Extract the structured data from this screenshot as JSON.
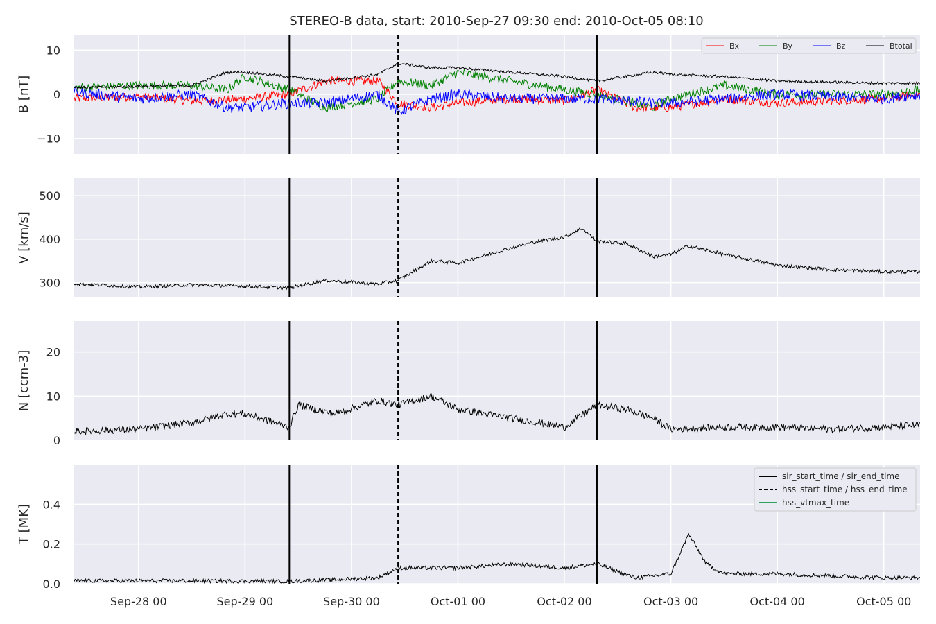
{
  "figure_title": "STEREO-B data, start: 2010-Sep-27 09:30  end: 2010-Oct-05 08:10",
  "colors": {
    "panel_bg": "#eaeaf2",
    "grid": "#ffffff",
    "bx": "#ff0000",
    "by": "#008000",
    "bz": "#0000ff",
    "btotal": "#000000",
    "hss_vtmax": "#2ca25f"
  },
  "chart_data": {
    "type": "line",
    "x_axis": {
      "start": "2010-09-27 09:30",
      "end": "2010-10-05 08:10",
      "tick_labels": [
        "Sep-28 00",
        "Sep-29 00",
        "Sep-30 00",
        "Oct-01 00",
        "Oct-02 00",
        "Oct-03 00",
        "Oct-04 00",
        "Oct-05 00"
      ],
      "tick_times": [
        "2010-09-28 00:00",
        "2010-09-29 00:00",
        "2010-09-30 00:00",
        "2010-10-01 00:00",
        "2010-10-02 00:00",
        "2010-10-03 00:00",
        "2010-10-04 00:00",
        "2010-10-05 00:00"
      ]
    },
    "grid": true,
    "event_lines": [
      {
        "time": "2010-09-29 10:00",
        "style": "solid"
      },
      {
        "time": "2010-09-30 10:30",
        "style": "dashed"
      },
      {
        "time": "2010-10-02 07:20",
        "style": "solid"
      }
    ],
    "legend_b": {
      "placement": "top-right",
      "entries": [
        {
          "label": "Bx",
          "color": "#ff0000"
        },
        {
          "label": "By",
          "color": "#008000"
        },
        {
          "label": "Bz",
          "color": "#0000ff"
        },
        {
          "label": "Btotal",
          "color": "#000000"
        }
      ]
    },
    "legend_t": {
      "placement": "top-right",
      "entries": [
        {
          "label": "sir_start_time / sir_end_time",
          "color": "#000000",
          "style": "solid"
        },
        {
          "label": "hss_start_time / hss_end_time",
          "color": "#000000",
          "style": "dashed"
        },
        {
          "label": "hss_vtmax_time",
          "color": "#2ca25f",
          "style": "solid"
        }
      ]
    },
    "panels": [
      {
        "id": "B",
        "ylabel": "B [nT]",
        "ylim": [
          -13.5,
          13.5
        ],
        "yticks": [
          -10,
          0,
          10
        ],
        "ytick_labels": [
          "−10",
          "0",
          "10"
        ],
        "series": [
          {
            "name": "Bx",
            "color": "#ff0000",
            "jitter": 1.0,
            "points": [
              [
                "2010-09-27 09:30",
                -1
              ],
              [
                "2010-09-28 00:00",
                -0.5
              ],
              [
                "2010-09-28 12:00",
                -1.5
              ],
              [
                "2010-09-29 00:00",
                -1
              ],
              [
                "2010-09-29 10:00",
                0
              ],
              [
                "2010-09-29 18:00",
                3
              ],
              [
                "2010-09-30 06:00",
                3
              ],
              [
                "2010-09-30 10:30",
                -2
              ],
              [
                "2010-09-30 18:00",
                -3
              ],
              [
                "2010-10-01 00:00",
                -2
              ],
              [
                "2010-10-01 12:00",
                -1
              ],
              [
                "2010-10-02 00:00",
                -1.5
              ],
              [
                "2010-10-02 07:20",
                1
              ],
              [
                "2010-10-02 16:00",
                -3
              ],
              [
                "2010-10-03 00:00",
                -3
              ],
              [
                "2010-10-03 12:00",
                -1
              ],
              [
                "2010-10-04 00:00",
                -2
              ],
              [
                "2010-10-05 00:00",
                -1
              ],
              [
                "2010-10-05 08:10",
                0
              ]
            ]
          },
          {
            "name": "By",
            "color": "#008000",
            "jitter": 1.0,
            "points": [
              [
                "2010-09-27 09:30",
                1.5
              ],
              [
                "2010-09-28 00:00",
                2
              ],
              [
                "2010-09-28 12:00",
                2
              ],
              [
                "2010-09-28 20:00",
                1
              ],
              [
                "2010-09-29 00:00",
                4
              ],
              [
                "2010-09-29 10:00",
                1
              ],
              [
                "2010-09-29 18:00",
                -3
              ],
              [
                "2010-09-30 06:00",
                -1
              ],
              [
                "2010-09-30 10:30",
                3
              ],
              [
                "2010-09-30 18:00",
                2
              ],
              [
                "2010-10-01 00:00",
                5
              ],
              [
                "2010-10-01 12:00",
                3
              ],
              [
                "2010-10-02 00:00",
                1
              ],
              [
                "2010-10-02 07:20",
                0
              ],
              [
                "2010-10-02 20:00",
                -3
              ],
              [
                "2010-10-03 00:00",
                -1
              ],
              [
                "2010-10-03 12:00",
                2
              ],
              [
                "2010-10-04 00:00",
                0
              ],
              [
                "2010-10-05 00:00",
                0
              ],
              [
                "2010-10-05 08:10",
                1
              ]
            ]
          },
          {
            "name": "Bz",
            "color": "#0000ff",
            "jitter": 1.2,
            "points": [
              [
                "2010-09-27 09:30",
                0.5
              ],
              [
                "2010-09-28 00:00",
                -1
              ],
              [
                "2010-09-28 12:00",
                0
              ],
              [
                "2010-09-28 20:00",
                -3
              ],
              [
                "2010-09-29 00:00",
                -3
              ],
              [
                "2010-09-29 10:00",
                -2
              ],
              [
                "2010-09-29 18:00",
                -2
              ],
              [
                "2010-09-30 06:00",
                0
              ],
              [
                "2010-09-30 10:30",
                -4
              ],
              [
                "2010-09-30 18:00",
                -1
              ],
              [
                "2010-10-01 00:00",
                0
              ],
              [
                "2010-10-01 12:00",
                -1
              ],
              [
                "2010-10-02 00:00",
                -1
              ],
              [
                "2010-10-02 07:20",
                -1
              ],
              [
                "2010-10-02 20:00",
                -2
              ],
              [
                "2010-10-03 00:00",
                -2
              ],
              [
                "2010-10-03 12:00",
                -1
              ],
              [
                "2010-10-04 00:00",
                0
              ],
              [
                "2010-10-05 00:00",
                -1
              ],
              [
                "2010-10-05 08:10",
                0
              ]
            ]
          },
          {
            "name": "Btotal",
            "color": "#000000",
            "jitter": 0.3,
            "points": [
              [
                "2010-09-27 09:30",
                1.5
              ],
              [
                "2010-09-28 00:00",
                1.8
              ],
              [
                "2010-09-28 12:00",
                2
              ],
              [
                "2010-09-28 20:00",
                5
              ],
              [
                "2010-09-29 00:00",
                5
              ],
              [
                "2010-09-29 10:00",
                4
              ],
              [
                "2010-09-29 18:00",
                3
              ],
              [
                "2010-09-30 06:00",
                4.5
              ],
              [
                "2010-09-30 10:30",
                7
              ],
              [
                "2010-09-30 18:00",
                6
              ],
              [
                "2010-10-01 00:00",
                6
              ],
              [
                "2010-10-01 12:00",
                5
              ],
              [
                "2010-10-02 00:00",
                4
              ],
              [
                "2010-10-02 07:20",
                3
              ],
              [
                "2010-10-02 20:00",
                5
              ],
              [
                "2010-10-03 00:00",
                4.5
              ],
              [
                "2010-10-03 12:00",
                4
              ],
              [
                "2010-10-04 00:00",
                3
              ],
              [
                "2010-10-05 00:00",
                2.5
              ],
              [
                "2010-10-05 08:10",
                2.5
              ]
            ]
          }
        ]
      },
      {
        "id": "V",
        "ylabel": "V [km/s]",
        "ylim": [
          266,
          540
        ],
        "yticks": [
          300,
          400,
          500
        ],
        "ytick_labels": [
          "300",
          "400",
          "500"
        ],
        "series": [
          {
            "name": "V",
            "color": "#000000",
            "jitter": 4,
            "points": [
              [
                "2010-09-27 09:30",
                298
              ],
              [
                "2010-09-28 00:00",
                290
              ],
              [
                "2010-09-28 12:00",
                295
              ],
              [
                "2010-09-29 00:00",
                292
              ],
              [
                "2010-09-29 10:00",
                288
              ],
              [
                "2010-09-29 18:00",
                305
              ],
              [
                "2010-09-30 06:00",
                297
              ],
              [
                "2010-09-30 10:30",
                305
              ],
              [
                "2010-09-30 18:00",
                350
              ],
              [
                "2010-10-01 00:00",
                345
              ],
              [
                "2010-10-01 12:00",
                380
              ],
              [
                "2010-10-01 18:00",
                395
              ],
              [
                "2010-10-02 00:00",
                405
              ],
              [
                "2010-10-02 04:00",
                425
              ],
              [
                "2010-10-02 07:20",
                395
              ],
              [
                "2010-10-02 14:00",
                390
              ],
              [
                "2010-10-02 20:00",
                360
              ],
              [
                "2010-10-03 00:00",
                365
              ],
              [
                "2010-10-03 04:00",
                385
              ],
              [
                "2010-10-03 12:00",
                365
              ],
              [
                "2010-10-04 00:00",
                340
              ],
              [
                "2010-10-04 12:00",
                330
              ],
              [
                "2010-10-05 00:00",
                325
              ],
              [
                "2010-10-05 08:10",
                325
              ]
            ]
          }
        ]
      },
      {
        "id": "N",
        "ylabel": "N [ccm-3]",
        "ylim": [
          0,
          27
        ],
        "yticks": [
          0,
          10,
          20
        ],
        "ytick_labels": [
          "0",
          "10",
          "20"
        ],
        "series": [
          {
            "name": "N",
            "color": "#000000",
            "jitter": 0.8,
            "points": [
              [
                "2010-09-27 09:30",
                2
              ],
              [
                "2010-09-28 00:00",
                2.5
              ],
              [
                "2010-09-28 12:00",
                4
              ],
              [
                "2010-09-28 20:00",
                6
              ],
              [
                "2010-09-29 00:00",
                6
              ],
              [
                "2010-09-29 10:00",
                3
              ],
              [
                "2010-09-29 12:00",
                8
              ],
              [
                "2010-09-29 20:00",
                6
              ],
              [
                "2010-09-30 06:00",
                9
              ],
              [
                "2010-09-30 10:30",
                8
              ],
              [
                "2010-09-30 18:00",
                10
              ],
              [
                "2010-10-01 00:00",
                7
              ],
              [
                "2010-10-01 12:00",
                5
              ],
              [
                "2010-10-02 00:00",
                3
              ],
              [
                "2010-10-02 07:20",
                8
              ],
              [
                "2010-10-02 14:00",
                7
              ],
              [
                "2010-10-02 20:00",
                5
              ],
              [
                "2010-10-03 00:00",
                2.5
              ],
              [
                "2010-10-03 12:00",
                3
              ],
              [
                "2010-10-04 00:00",
                3
              ],
              [
                "2010-10-04 12:00",
                2.5
              ],
              [
                "2010-10-05 00:00",
                3
              ],
              [
                "2010-10-05 08:10",
                3.5
              ]
            ]
          }
        ]
      },
      {
        "id": "T",
        "ylabel": "T [MK]",
        "ylim": [
          0,
          0.6
        ],
        "yticks": [
          0.0,
          0.2,
          0.4
        ],
        "ytick_labels": [
          "0.0",
          "0.2",
          "0.4"
        ],
        "series": [
          {
            "name": "T",
            "color": "#000000",
            "jitter": 0.01,
            "points": [
              [
                "2010-09-27 09:30",
                0.015
              ],
              [
                "2010-09-28 12:00",
                0.015
              ],
              [
                "2010-09-29 10:00",
                0.012
              ],
              [
                "2010-09-30 06:00",
                0.03
              ],
              [
                "2010-09-30 10:30",
                0.08
              ],
              [
                "2010-10-01 00:00",
                0.08
              ],
              [
                "2010-10-01 12:00",
                0.1
              ],
              [
                "2010-10-02 00:00",
                0.08
              ],
              [
                "2010-10-02 07:20",
                0.1
              ],
              [
                "2010-10-02 16:00",
                0.03
              ],
              [
                "2010-10-03 00:00",
                0.05
              ],
              [
                "2010-10-03 04:00",
                0.25
              ],
              [
                "2010-10-03 08:00",
                0.1
              ],
              [
                "2010-10-03 12:00",
                0.05
              ],
              [
                "2010-10-04 00:00",
                0.05
              ],
              [
                "2010-10-04 12:00",
                0.04
              ],
              [
                "2010-10-05 00:00",
                0.03
              ],
              [
                "2010-10-05 08:10",
                0.03
              ]
            ]
          }
        ]
      }
    ]
  }
}
